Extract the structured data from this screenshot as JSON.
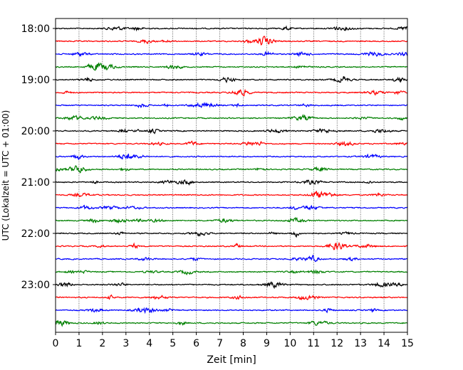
{
  "chart_data": {
    "type": "line",
    "title": "",
    "xlabel": "Zeit  [min]",
    "ylabel": "UTC (Lokalzeit = UTC + 01:00)",
    "xlim": [
      0,
      15
    ],
    "x_ticks": [
      "0",
      "1",
      "2",
      "3",
      "4",
      "5",
      "6",
      "7",
      "8",
      "9",
      "10",
      "11",
      "12",
      "13",
      "14",
      "15"
    ],
    "y_tick_labels": [
      "18:00",
      "19:00",
      "20:00",
      "21:00",
      "22:00",
      "23:00"
    ],
    "grid": "vertical dotted lines at each minute",
    "trace_colors": [
      "#000000",
      "#ff0000",
      "#0000ff",
      "#008000"
    ],
    "series": [
      {
        "start": "18:00"
      },
      {
        "start": "18:15"
      },
      {
        "start": "18:30"
      },
      {
        "start": "18:45"
      },
      {
        "start": "19:00"
      },
      {
        "start": "19:15"
      },
      {
        "start": "19:30"
      },
      {
        "start": "19:45"
      },
      {
        "start": "20:00"
      },
      {
        "start": "20:15"
      },
      {
        "start": "20:30"
      },
      {
        "start": "20:45"
      },
      {
        "start": "21:00"
      },
      {
        "start": "21:15"
      },
      {
        "start": "21:30"
      },
      {
        "start": "21:45"
      },
      {
        "start": "22:00"
      },
      {
        "start": "22:15"
      },
      {
        "start": "22:30"
      },
      {
        "start": "22:45"
      },
      {
        "start": "23:00"
      },
      {
        "start": "23:15"
      },
      {
        "start": "23:30"
      },
      {
        "start": "23:45"
      }
    ]
  }
}
